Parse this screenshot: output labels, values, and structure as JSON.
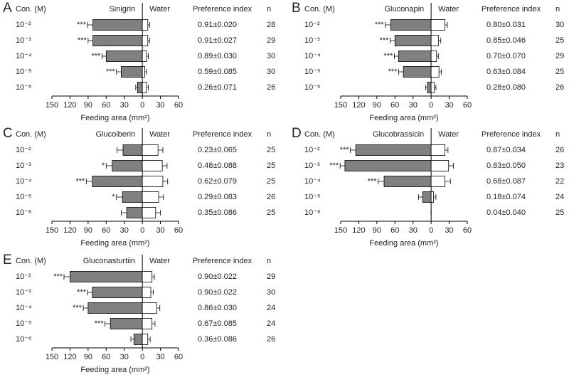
{
  "chart_data": [
    {
      "type": "butterfly-bar",
      "panel": "A",
      "category_header": "Con. (M)",
      "categories": [
        "10⁻²",
        "10⁻³",
        "10⁻⁴",
        "10⁻⁵",
        "10⁻⁶"
      ],
      "series": [
        {
          "name": "Sinigrin",
          "color": "#808080",
          "values": [
            -82,
            -82,
            -60,
            -35,
            -8
          ],
          "errors": [
            9,
            8,
            7,
            8,
            3
          ]
        },
        {
          "name": "Water",
          "color": "#ffffff",
          "values": [
            9,
            9,
            7,
            4,
            7
          ],
          "errors": [
            3,
            3,
            3,
            3,
            3
          ]
        }
      ],
      "significance": [
        "***",
        "***",
        "***",
        "***",
        null
      ],
      "pi_header": "Preference index",
      "preference_index": [
        "0.91±0.020",
        "0.91±0.027",
        "0.89±0.030",
        "0.59±0.085",
        "0.26±0.071"
      ],
      "n_header": "n",
      "n": [
        28,
        29,
        30,
        30,
        26
      ],
      "xlabel": "Feeding area (mm²)",
      "xlim": [
        -150,
        60
      ],
      "xticks": [
        {
          "value": -150,
          "label": "150"
        },
        {
          "value": -120,
          "label": "120"
        },
        {
          "value": -90,
          "label": "90"
        },
        {
          "value": -60,
          "label": "60"
        },
        {
          "value": -30,
          "label": "30"
        },
        0,
        30,
        60
      ]
    },
    {
      "type": "butterfly-bar",
      "panel": "B",
      "category_header": "Con. (M)",
      "categories": [
        "10⁻²",
        "10⁻³",
        "10⁻⁴",
        "10⁻⁵",
        "10⁻⁶"
      ],
      "series": [
        {
          "name": "Gluconapin",
          "color": "#808080",
          "values": [
            -67,
            -60,
            -54,
            -46,
            -6
          ],
          "errors": [
            9,
            8,
            7,
            8,
            3
          ]
        },
        {
          "name": "Water",
          "color": "#ffffff",
          "values": [
            23,
            12,
            9,
            13,
            5
          ],
          "errors": [
            4,
            4,
            3,
            4,
            3
          ]
        }
      ],
      "significance": [
        "***",
        "***",
        "***",
        "***",
        null
      ],
      "pi_header": "Preference index",
      "preference_index": [
        "0.80±0.031",
        "0.85±0.046",
        "0.70±0.070",
        "0.63±0.084",
        "0.28±0.080"
      ],
      "n_header": "n",
      "n": [
        30,
        25,
        29,
        25,
        26
      ],
      "xlabel": "Feeding area (mm²)",
      "xlim": [
        -150,
        60
      ],
      "xticks": [
        {
          "value": -150,
          "label": "150"
        },
        {
          "value": -120,
          "label": "120"
        },
        {
          "value": -90,
          "label": "90"
        },
        {
          "value": -60,
          "label": "60"
        },
        {
          "value": -30,
          "label": "30"
        },
        0,
        30,
        60
      ]
    },
    {
      "type": "butterfly-bar",
      "panel": "C",
      "category_header": "Con. (M)",
      "categories": [
        "10⁻²",
        "10⁻³",
        "10⁻⁴",
        "10⁻⁵",
        "10⁻⁶"
      ],
      "series": [
        {
          "name": "Glucoiberin",
          "color": "#808080",
          "values": [
            -32,
            -50,
            -83,
            -33,
            -26
          ],
          "errors": [
            10,
            10,
            10,
            10,
            9
          ]
        },
        {
          "name": "Water",
          "color": "#ffffff",
          "values": [
            26,
            33,
            34,
            27,
            22
          ],
          "errors": [
            8,
            8,
            8,
            8,
            8
          ]
        }
      ],
      "significance": [
        null,
        "*",
        "***",
        "*",
        null
      ],
      "pi_header": "Preference index",
      "preference_index": [
        "0.23±0.065",
        "0.48±0.088",
        "0.62±0.079",
        "0.29±0.083",
        "0.35±0.086"
      ],
      "n_header": "n",
      "n": [
        25,
        25,
        25,
        26,
        25
      ],
      "xlabel": "Feeding area (mm²)",
      "xlim": [
        -150,
        60
      ],
      "xticks": [
        {
          "value": -150,
          "label": "150"
        },
        {
          "value": -120,
          "label": "120"
        },
        {
          "value": -90,
          "label": "90"
        },
        {
          "value": -60,
          "label": "60"
        },
        {
          "value": -30,
          "label": "30"
        },
        0,
        30,
        60
      ]
    },
    {
      "type": "butterfly-bar",
      "panel": "D",
      "category_header": "Con. (M)",
      "categories": [
        "10⁻²",
        "10⁻³",
        "10⁻⁴",
        "10⁻⁵",
        "10⁻⁶"
      ],
      "series": [
        {
          "name": "Glucobrassicin",
          "color": "#808080",
          "values": [
            -125,
            -143,
            -78,
            -14,
            0
          ],
          "errors": [
            9,
            8,
            10,
            7,
            0
          ]
        },
        {
          "name": "Water",
          "color": "#ffffff",
          "values": [
            23,
            29,
            23,
            4,
            0
          ],
          "errors": [
            5,
            8,
            9,
            4,
            0
          ]
        }
      ],
      "significance": [
        "***",
        "***",
        "***",
        null,
        null
      ],
      "pi_header": "Preference index",
      "preference_index": [
        "0.87±0.034",
        "0.83±0.050",
        "0.68±0.087",
        "0.18±0.074",
        "0.04±0.040"
      ],
      "n_header": "n",
      "n": [
        26,
        23,
        22,
        24,
        25
      ],
      "xlabel": "Feeding area (mm²)",
      "xlim": [
        -150,
        60
      ],
      "xticks": [
        {
          "value": -150,
          "label": "150"
        },
        {
          "value": -120,
          "label": "120"
        },
        {
          "value": -90,
          "label": "90"
        },
        {
          "value": -60,
          "label": "60"
        },
        {
          "value": -30,
          "label": "30"
        },
        0,
        30,
        60
      ]
    },
    {
      "type": "butterfly-bar",
      "panel": "E",
      "category_header": "Con. (M)",
      "categories": [
        "10⁻²",
        "10⁻³",
        "10⁻⁴",
        "10⁻⁵",
        "10⁻⁶"
      ],
      "series": [
        {
          "name": "Gluconasturtiin",
          "color": "#808080",
          "values": [
            -120,
            -83,
            -90,
            -53,
            -14
          ],
          "errors": [
            10,
            8,
            8,
            9,
            5
          ]
        },
        {
          "name": "Water",
          "color": "#ffffff",
          "values": [
            16,
            14,
            24,
            16,
            9
          ],
          "errors": [
            4,
            4,
            5,
            5,
            4
          ]
        }
      ],
      "significance": [
        "***",
        "***",
        "***",
        "***",
        null
      ],
      "pi_header": "Preference index",
      "preference_index": [
        "0.90±0.022",
        "0.90±0.022",
        "0.86±0.030",
        "0.67±0.085",
        "0.36±0.086"
      ],
      "n_header": "n",
      "n": [
        29,
        30,
        24,
        24,
        26
      ],
      "xlabel": "Feeding area (mm²)",
      "xlim": [
        -150,
        60
      ],
      "xticks": [
        {
          "value": -150,
          "label": "150"
        },
        {
          "value": -120,
          "label": "120"
        },
        {
          "value": -90,
          "label": "90"
        },
        {
          "value": -60,
          "label": "60"
        },
        {
          "value": -30,
          "label": "30"
        },
        0,
        30,
        60
      ]
    }
  ]
}
